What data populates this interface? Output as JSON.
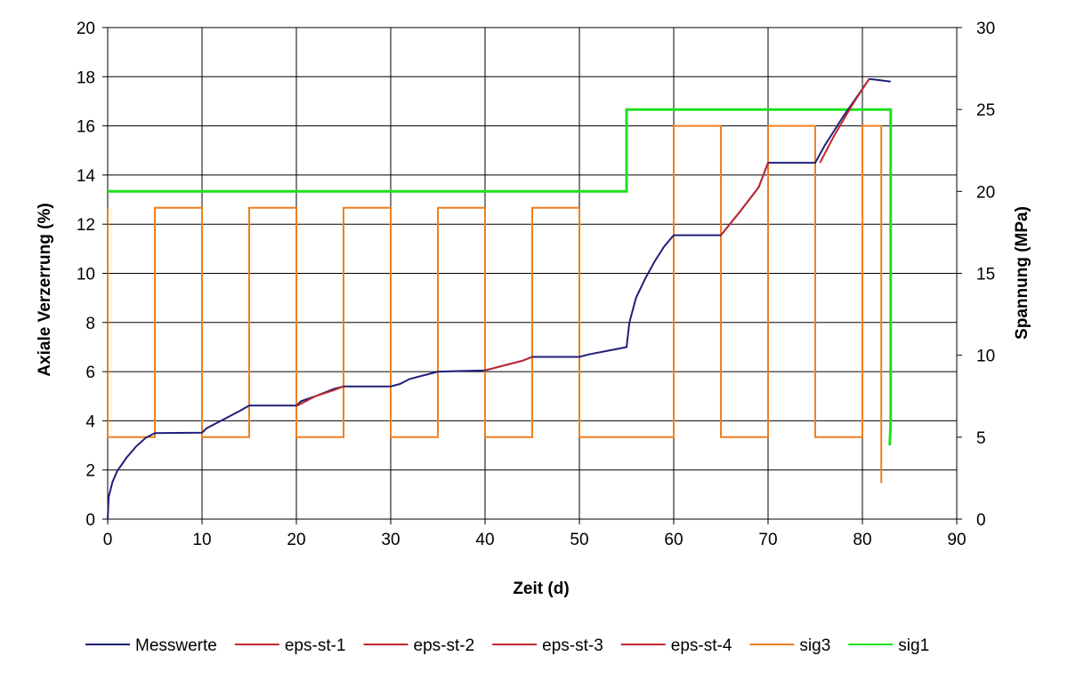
{
  "chart_data": {
    "type": "line",
    "xlabel": "Zeit (d)",
    "ylabel": "Axiale Verzerrung (%)",
    "y2label": "Spannung (MPa)",
    "xlim": [
      0,
      90
    ],
    "ylim": [
      0,
      20
    ],
    "y2lim": [
      0,
      30
    ],
    "x_ticks": [
      0,
      10,
      20,
      30,
      40,
      50,
      60,
      70,
      80,
      90
    ],
    "y_ticks": [
      0,
      2,
      4,
      6,
      8,
      10,
      12,
      14,
      16,
      18,
      20
    ],
    "y2_ticks": [
      0,
      5,
      10,
      15,
      20,
      25,
      30
    ],
    "grid": true,
    "legend_position": "bottom",
    "series": [
      {
        "name": "Messwerte",
        "axis": "left",
        "color": "#1f1f7a",
        "points": [
          [
            0,
            0
          ],
          [
            0.1,
            0.9
          ],
          [
            0.5,
            1.5
          ],
          [
            1,
            1.95
          ],
          [
            2,
            2.5
          ],
          [
            3,
            2.95
          ],
          [
            4,
            3.3
          ],
          [
            5,
            3.5
          ],
          [
            10,
            3.52
          ],
          [
            10.5,
            3.7
          ],
          [
            12,
            4.0
          ],
          [
            14,
            4.4
          ],
          [
            15,
            4.62
          ],
          [
            20,
            4.62
          ],
          [
            20.5,
            4.8
          ],
          [
            22,
            5.0
          ],
          [
            24,
            5.3
          ],
          [
            25,
            5.4
          ],
          [
            30,
            5.4
          ],
          [
            31,
            5.5
          ],
          [
            32,
            5.7
          ],
          [
            34,
            5.9
          ],
          [
            35,
            6.0
          ],
          [
            40,
            6.05
          ],
          [
            42,
            6.25
          ],
          [
            44,
            6.45
          ],
          [
            45,
            6.6
          ],
          [
            50,
            6.6
          ],
          [
            51,
            6.7
          ],
          [
            53,
            6.85
          ],
          [
            55,
            7.0
          ],
          [
            55.3,
            8.0
          ],
          [
            56,
            9.0
          ],
          [
            57,
            9.8
          ],
          [
            58,
            10.5
          ],
          [
            59,
            11.1
          ],
          [
            60,
            11.55
          ],
          [
            65,
            11.55
          ],
          [
            67,
            12.5
          ],
          [
            69,
            13.5
          ],
          [
            70,
            14.5
          ],
          [
            75,
            14.5
          ],
          [
            76,
            15.2
          ],
          [
            78,
            16.4
          ],
          [
            80,
            17.5
          ],
          [
            80.7,
            17.9
          ],
          [
            81,
            17.9
          ],
          [
            83,
            17.8
          ]
        ]
      },
      {
        "name": "eps-st-1",
        "axis": "left",
        "color": "#c0282d",
        "points": [
          [
            20,
            4.6
          ],
          [
            22,
            5.0
          ],
          [
            24,
            5.25
          ],
          [
            25,
            5.4
          ]
        ]
      },
      {
        "name": "eps-st-2",
        "axis": "left",
        "color": "#c0282d",
        "points": [
          [
            40,
            6.05
          ],
          [
            42,
            6.25
          ],
          [
            44,
            6.45
          ],
          [
            45,
            6.6
          ]
        ]
      },
      {
        "name": "eps-st-3",
        "axis": "left",
        "color": "#c0282d",
        "points": [
          [
            65,
            11.55
          ],
          [
            67,
            12.5
          ],
          [
            69,
            13.5
          ],
          [
            70,
            14.5
          ]
        ]
      },
      {
        "name": "eps-st-4",
        "axis": "left",
        "color": "#c0282d",
        "points": [
          [
            75.5,
            14.5
          ],
          [
            77,
            15.6
          ],
          [
            79,
            16.9
          ],
          [
            80.7,
            17.9
          ]
        ]
      },
      {
        "name": "sig3",
        "axis": "right",
        "color": "#f07f1e",
        "points": [
          [
            0,
            19
          ],
          [
            0,
            5
          ],
          [
            5,
            5
          ],
          [
            5,
            19
          ],
          [
            10,
            19
          ],
          [
            10,
            5
          ],
          [
            15,
            5
          ],
          [
            15,
            19
          ],
          [
            20,
            19
          ],
          [
            20,
            5
          ],
          [
            25,
            5
          ],
          [
            25,
            19
          ],
          [
            30,
            19
          ],
          [
            30,
            5
          ],
          [
            35,
            5
          ],
          [
            35,
            19
          ],
          [
            40,
            19
          ],
          [
            40,
            5
          ],
          [
            45,
            5
          ],
          [
            45,
            19
          ],
          [
            50,
            19
          ],
          [
            50,
            5
          ],
          [
            60,
            5
          ],
          [
            60,
            24
          ],
          [
            65,
            24
          ],
          [
            65,
            5
          ],
          [
            70,
            5
          ],
          [
            70,
            24
          ],
          [
            75,
            24
          ],
          [
            75,
            5
          ],
          [
            80,
            5
          ],
          [
            80,
            24
          ],
          [
            82,
            24
          ],
          [
            82,
            2.2
          ]
        ]
      },
      {
        "name": "sig1",
        "axis": "right",
        "color": "#1ee01e",
        "points": [
          [
            0,
            20
          ],
          [
            55,
            20
          ],
          [
            55,
            25
          ],
          [
            83,
            25
          ],
          [
            83,
            6
          ],
          [
            82.9,
            4.5
          ]
        ]
      }
    ]
  }
}
